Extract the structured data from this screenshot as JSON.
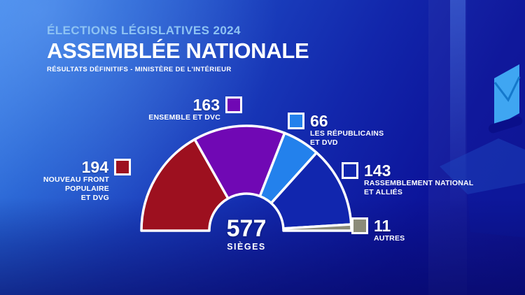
{
  "header": {
    "eyebrow": "ÉLECTIONS LÉGISLATIVES 2024",
    "title": "ASSEMBLÉE NATIONALE",
    "subtitle": "RÉSULTATS DÉFINITIFS - MINISTÈRE DE L'INTÉRIEUR"
  },
  "chart_data": {
    "type": "pie",
    "variant": "hemicycle-half-donut",
    "total": 577,
    "center_value": "577",
    "center_label": "SIÈGES",
    "legend_position": "around-chart",
    "series": [
      {
        "name": "NOUVEAU FRONT POPULAIRE ET DVG",
        "seats": 194,
        "color": "#9d101f"
      },
      {
        "name": "ENSEMBLE ET DVC",
        "seats": 163,
        "color": "#7008b4"
      },
      {
        "name": "LES RÉPUBLICAINS ET DVD",
        "seats": 66,
        "color": "#2381ec"
      },
      {
        "name": "RASSEMBLEMENT NATIONAL ET ALLIÉS",
        "seats": 143,
        "color": "#1126ae"
      },
      {
        "name": "AUTRES",
        "seats": 11,
        "color": "#8b8b79"
      }
    ]
  },
  "callouts": {
    "ensemble": {
      "value": "163",
      "line1": "ENSEMBLE ET DVC"
    },
    "lr": {
      "value": "66",
      "line1": "LES RÉPUBLICAINS",
      "line2": "ET DVD"
    },
    "nfp": {
      "value": "194",
      "line1": "NOUVEAU FRONT POPULAIRE",
      "line2": "ET DVG"
    },
    "rn": {
      "value": "143",
      "line1": "RASSEMBLEMENT NATIONAL",
      "line2": "ET ALLIÉS"
    },
    "autres": {
      "value": "11",
      "line1": "AUTRES"
    }
  }
}
